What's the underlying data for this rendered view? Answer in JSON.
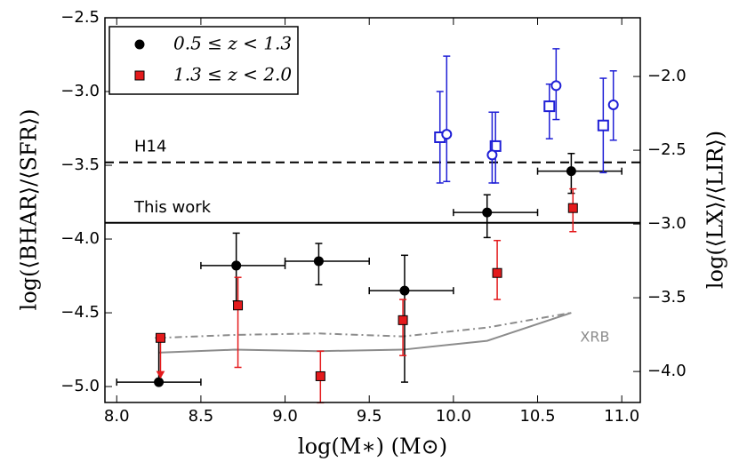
{
  "chart_data": {
    "type": "errorbar",
    "xlabel": "log(M∗) (M⊙)",
    "ylabel": "log(⟨BHAR⟩/⟨SFR⟩)",
    "y2label": "log(⟨LX⟩/⟨LIR⟩)",
    "xlim": [
      7.93,
      11.11
    ],
    "ylim": [
      -5.108,
      -2.5
    ],
    "y2lim": [
      -4.21,
      -1.602
    ],
    "xticks": [
      {
        "value": 8,
        "label": "8.0"
      },
      {
        "value": 8.5,
        "label": "8.5"
      },
      {
        "value": 9,
        "label": "9.0"
      },
      {
        "value": 9.5,
        "label": "9.5"
      },
      {
        "value": 10,
        "label": "10.0"
      },
      {
        "value": 10.5,
        "label": "10.5"
      },
      {
        "value": 11,
        "label": "11.0"
      }
    ],
    "yticks": [
      {
        "value": -2.5,
        "label": "−2.5"
      },
      {
        "value": -3,
        "label": "−3.0"
      },
      {
        "value": -3.5,
        "label": "−3.5"
      },
      {
        "value": -4,
        "label": "−4.0"
      },
      {
        "value": -4.5,
        "label": "−4.5"
      },
      {
        "value": -5,
        "label": "−5.0"
      }
    ],
    "y2ticks": [
      {
        "value": -2,
        "label": "−2.0"
      },
      {
        "value": -2.5,
        "label": "−2.5"
      },
      {
        "value": -3,
        "label": "−3.0"
      },
      {
        "value": -3.5,
        "label": "−3.5"
      },
      {
        "value": -4,
        "label": "−4.0"
      }
    ],
    "legend": "upper left",
    "hlines": [
      {
        "label": "H14",
        "value": -3.48,
        "style": "dashed",
        "color": "#000000"
      },
      {
        "label": "This work",
        "value": -3.89,
        "style": "solid",
        "color": "#000000"
      }
    ],
    "curves": [
      {
        "label": "XRB",
        "style": "solid",
        "color": "#8c8c8c",
        "x": [
          8.25,
          8.7,
          9.2,
          9.7,
          10.2,
          10.7
        ],
        "values": [
          -4.77,
          -4.75,
          -4.76,
          -4.75,
          -4.69,
          -4.5
        ]
      },
      {
        "style": "dashdot",
        "color": "#8c8c8c",
        "x": [
          8.25,
          8.7,
          9.2,
          9.7,
          10.2,
          10.7
        ],
        "values": [
          -4.67,
          -4.65,
          -4.64,
          -4.66,
          -4.6,
          -4.5
        ]
      }
    ],
    "series": [
      {
        "name": "0.5 ≤ z < 1.3",
        "color": "#000000",
        "marker": "circle",
        "filled": true,
        "errcolor": "#000000",
        "x": [
          8.25,
          8.71,
          9.2,
          9.71,
          10.2,
          10.7
        ],
        "values": [
          -4.97,
          -4.18,
          -4.15,
          -4.35,
          -3.82,
          -3.54
        ],
        "xerr_low": [
          0.25,
          0.21,
          0.2,
          0.21,
          0.2,
          0.2
        ],
        "xerr_high": [
          0.25,
          0.29,
          0.3,
          0.29,
          0.3,
          0.3
        ],
        "yerr_low": [
          0,
          0.24,
          0.16,
          0.62,
          0.17,
          0.15
        ],
        "yerr_high": [
          0.3,
          0.22,
          0.12,
          0.24,
          0.12,
          0.12
        ]
      },
      {
        "name": "1.3 ≤ z < 2.0",
        "color": "#e41a1c",
        "marker": "square",
        "filled": true,
        "errcolor": "#e41a1c",
        "x": [
          8.26,
          8.72,
          9.21,
          9.7,
          10.26,
          10.71
        ],
        "values": [
          -4.67,
          -4.45,
          -4.93,
          -4.55,
          -4.23,
          -3.79
        ],
        "yerr_low": [
          0.27,
          0.42,
          0.18,
          0.24,
          0.18,
          0.16
        ],
        "yerr_high": [
          0,
          0.19,
          0.17,
          0.14,
          0.22,
          0.13
        ],
        "upper_limit": [
          true,
          false,
          false,
          false,
          false,
          false
        ]
      },
      {
        "color": "#1f1fd6",
        "marker": "square",
        "filled": false,
        "errcolor": "#1f1fd6",
        "x": [
          9.92,
          10.25,
          10.57,
          10.89
        ],
        "values": [
          -3.31,
          -3.37,
          -3.1,
          -3.23
        ],
        "yerr_low": [
          0.31,
          0.25,
          0.22,
          0.32
        ],
        "yerr_high": [
          0.31,
          0.23,
          0.15,
          0.32
        ]
      },
      {
        "color": "#1f1fd6",
        "marker": "circle",
        "filled": false,
        "errcolor": "#1f1fd6",
        "x": [
          9.96,
          10.23,
          10.61,
          10.95
        ],
        "values": [
          -3.29,
          -3.43,
          -2.96,
          -3.09
        ],
        "yerr_low": [
          0.32,
          0.19,
          0.23,
          0.24
        ],
        "yerr_high": [
          0.53,
          0.29,
          0.25,
          0.23
        ]
      }
    ]
  }
}
